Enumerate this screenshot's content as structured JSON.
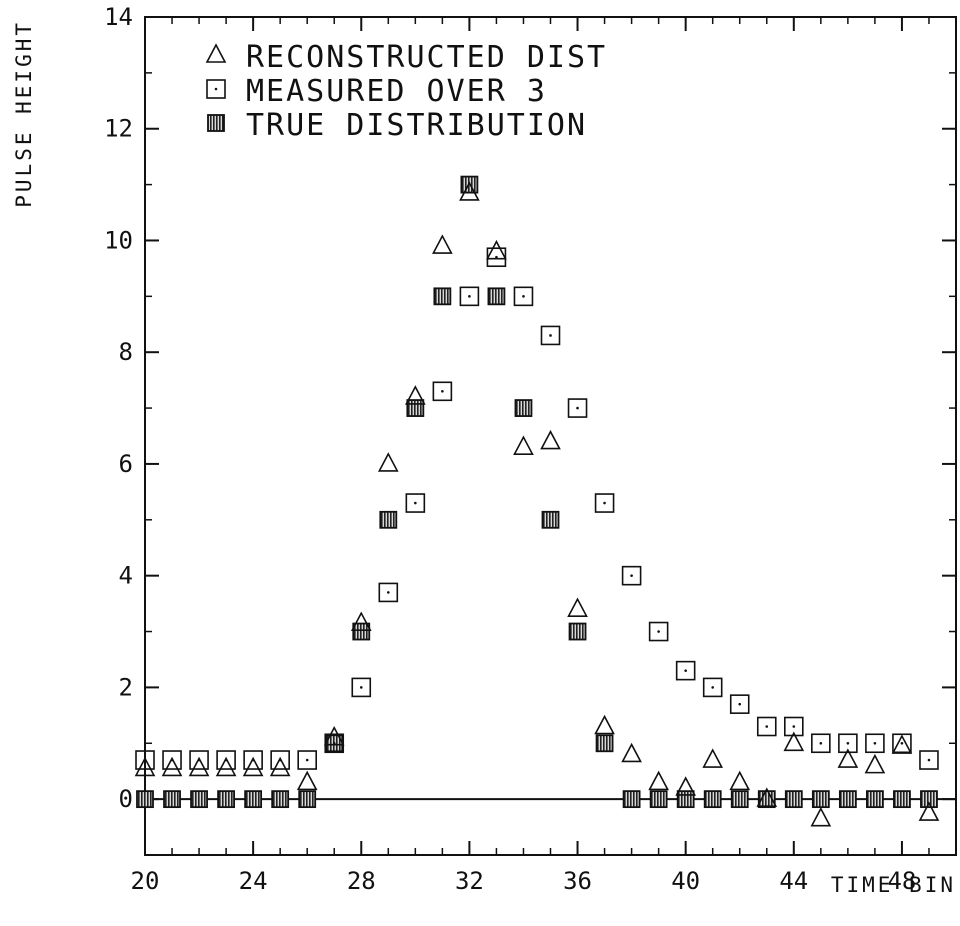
{
  "chart_data": {
    "type": "scatter",
    "title": "",
    "xlabel": "TIME BIN",
    "ylabel": "PULSE HEIGHT",
    "xlim": [
      20,
      50
    ],
    "ylim": [
      -1,
      14
    ],
    "xticks": [
      20,
      24,
      28,
      32,
      36,
      40,
      44,
      48
    ],
    "yticks": [
      0,
      2,
      4,
      6,
      8,
      10,
      12,
      14
    ],
    "grid": false,
    "legend_position": "top-left",
    "series": [
      {
        "name": "RECONSTRUCTED DIST",
        "marker": "triangle",
        "x": [
          20,
          21,
          22,
          23,
          24,
          25,
          26,
          27,
          28,
          29,
          30,
          31,
          32,
          33,
          34,
          35,
          36,
          37,
          38,
          39,
          40,
          41,
          42,
          43,
          44,
          45,
          46,
          47,
          48,
          49
        ],
        "y": [
          0.55,
          0.55,
          0.55,
          0.55,
          0.55,
          0.55,
          0.3,
          1.1,
          3.15,
          6.0,
          7.2,
          9.9,
          10.85,
          9.8,
          6.3,
          6.4,
          3.4,
          1.3,
          0.8,
          0.3,
          0.2,
          0.7,
          0.3,
          0.0,
          1.0,
          -0.35,
          0.7,
          0.6,
          0.95,
          -0.25
        ]
      },
      {
        "name": "MEASURED OVER 3",
        "marker": "square",
        "x": [
          20,
          21,
          22,
          23,
          24,
          25,
          26,
          27,
          28,
          29,
          30,
          31,
          32,
          33,
          34,
          35,
          36,
          37,
          38,
          39,
          40,
          41,
          42,
          43,
          44,
          45,
          46,
          47,
          48,
          49
        ],
        "y": [
          0.7,
          0.7,
          0.7,
          0.7,
          0.7,
          0.7,
          0.7,
          1.0,
          2.0,
          3.7,
          5.3,
          7.3,
          9.0,
          9.7,
          9.0,
          8.3,
          7.0,
          5.3,
          4.0,
          3.0,
          2.3,
          2.0,
          1.7,
          1.3,
          1.3,
          1.0,
          1.0,
          1.0,
          1.0,
          0.7
        ]
      },
      {
        "name": "TRUE DISTRIBUTION",
        "marker": "filled-square",
        "x": [
          20,
          21,
          22,
          23,
          24,
          25,
          26,
          27,
          28,
          29,
          30,
          31,
          32,
          33,
          34,
          35,
          36,
          37,
          38,
          39,
          40,
          41,
          42,
          43,
          44,
          45,
          46,
          47,
          48,
          49
        ],
        "y": [
          0,
          0,
          0,
          0,
          0,
          0,
          0,
          1,
          3,
          5,
          7,
          9,
          11,
          9,
          7,
          5,
          3,
          1,
          0,
          0,
          0,
          0,
          0,
          0,
          0,
          0,
          0,
          0,
          0,
          0
        ]
      }
    ]
  }
}
